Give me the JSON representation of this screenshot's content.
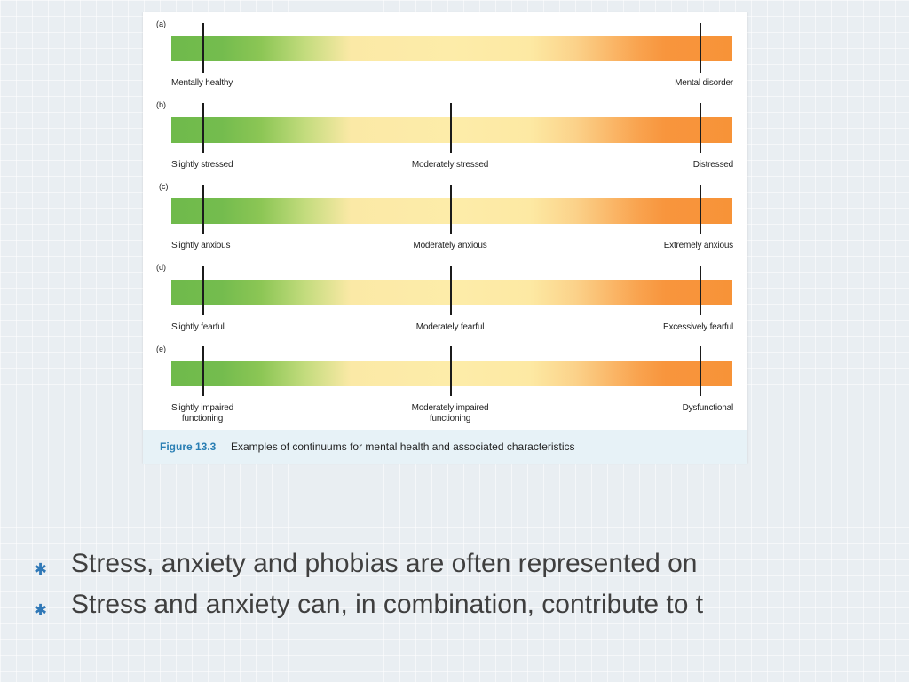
{
  "figure": {
    "panels": [
      {
        "letter": "(a)",
        "ticks": [
          "left",
          "right"
        ],
        "labels": {
          "left": "Mentally healthy",
          "middle": "",
          "right": "Mental disorder"
        }
      },
      {
        "letter": "(b)",
        "ticks": [
          "left",
          "middle",
          "right"
        ],
        "labels": {
          "left": "Slightly stressed",
          "middle": "Moderately stressed",
          "right": "Distressed"
        }
      },
      {
        "letter": "(c)",
        "ticks": [
          "left",
          "middle",
          "right"
        ],
        "labels": {
          "left": "Slightly anxious",
          "middle": "Moderately anxious",
          "right": "Extremely anxious"
        }
      },
      {
        "letter": "(d)",
        "ticks": [
          "left",
          "middle",
          "right"
        ],
        "labels": {
          "left": "Slightly fearful",
          "middle": "Moderately fearful",
          "right": "Excessively fearful"
        }
      },
      {
        "letter": "(e)",
        "ticks": [
          "left",
          "middle",
          "right"
        ],
        "labels": {
          "left": "Slightly impaired\nfunctioning",
          "middle": "Moderately impaired\nfunctioning",
          "right": "Dysfunctional"
        }
      }
    ],
    "caption": {
      "figure_label": "Figure 13.3",
      "text": "Examples of continuums for mental health and associated characteristics"
    },
    "colors": {
      "green": "#6fba4b",
      "yellow": "#fdeca9",
      "orange": "#f79338",
      "caption_bg": "#e7f2f7",
      "caption_label": "#2a7fb4"
    }
  },
  "bullets": [
    {
      "icon": "asterisk-icon",
      "text": "Stress, anxiety and phobias are often represented on"
    },
    {
      "icon": "asterisk-icon",
      "text": "Stress and anxiety can, in combination, contribute to t"
    }
  ],
  "bullet_color": "#2f78b7"
}
